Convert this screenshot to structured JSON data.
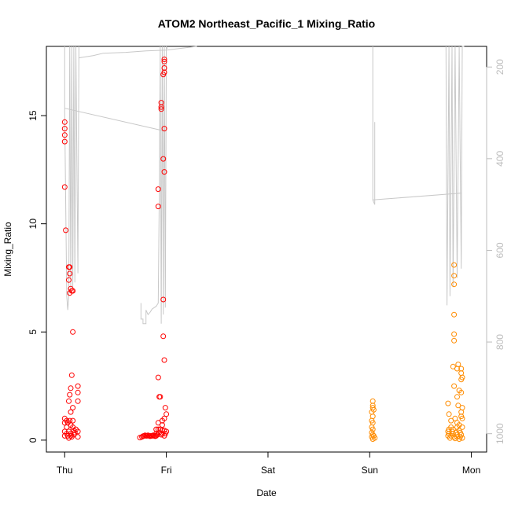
{
  "chart_data": {
    "type": "scatter",
    "title": "ATOM2 Northeast_Pacific_1 Mixing_Ratio",
    "xlabel": "Date",
    "ylabel": "Mixing_Ratio",
    "x_ticks": [
      {
        "label": "Thu",
        "value": 0
      },
      {
        "label": "Fri",
        "value": 1
      },
      {
        "label": "Sat",
        "value": 2
      },
      {
        "label": "Sun",
        "value": 3
      },
      {
        "label": "Mon",
        "value": 4
      }
    ],
    "xlim": [
      -0.18,
      4.15
    ],
    "ylim": [
      -0.55,
      18.2
    ],
    "y_ticks": [
      0,
      5,
      10,
      15
    ],
    "y2_ticks": [
      200,
      400,
      600,
      800,
      1000
    ],
    "y2lim": [
      1040,
      155
    ],
    "y2_reversed": true,
    "colors": {
      "red": "#ff0000",
      "orange": "#ff8c00",
      "gray": "#c8c8c8"
    },
    "series": [
      {
        "color": "red",
        "points": [
          [
            0.0,
            14.7
          ],
          [
            0.0,
            14.4
          ],
          [
            0.0,
            14.1
          ],
          [
            0.0,
            13.8
          ],
          [
            0.0,
            11.7
          ],
          [
            0.01,
            9.7
          ],
          [
            0.04,
            8.0
          ],
          [
            0.05,
            8.0
          ],
          [
            0.05,
            7.7
          ],
          [
            0.04,
            7.4
          ],
          [
            0.06,
            7.0
          ],
          [
            0.07,
            6.9
          ],
          [
            0.05,
            6.8
          ],
          [
            0.08,
            6.9
          ],
          [
            0.08,
            5.0
          ],
          [
            0.07,
            3.0
          ],
          [
            0.13,
            2.5
          ],
          [
            0.06,
            2.4
          ],
          [
            0.13,
            2.2
          ],
          [
            0.05,
            2.1
          ],
          [
            0.04,
            1.8
          ],
          [
            0.13,
            1.8
          ],
          [
            0.08,
            1.5
          ],
          [
            0.06,
            1.3
          ],
          [
            0.0,
            1.0
          ],
          [
            0.02,
            0.9
          ],
          [
            0.05,
            0.9
          ],
          [
            0.08,
            0.9
          ],
          [
            0.0,
            0.8
          ],
          [
            0.03,
            0.8
          ],
          [
            0.06,
            0.7
          ],
          [
            0.02,
            0.6
          ],
          [
            0.08,
            0.6
          ],
          [
            0.11,
            0.5
          ],
          [
            0.0,
            0.4
          ],
          [
            0.04,
            0.4
          ],
          [
            0.09,
            0.45
          ],
          [
            0.13,
            0.4
          ],
          [
            0.02,
            0.3
          ],
          [
            0.06,
            0.3
          ],
          [
            0.1,
            0.35
          ],
          [
            0.0,
            0.2
          ],
          [
            0.03,
            0.2
          ],
          [
            0.06,
            0.2
          ],
          [
            0.09,
            0.25
          ],
          [
            0.13,
            0.15
          ],
          [
            0.04,
            0.1
          ],
          [
            0.07,
            0.15
          ],
          [
            0.95,
            15.6
          ],
          [
            0.95,
            15.4
          ],
          [
            0.95,
            15.3
          ],
          [
            0.98,
            17.6
          ],
          [
            0.98,
            17.5
          ],
          [
            0.98,
            17.2
          ],
          [
            0.98,
            17.0
          ],
          [
            0.97,
            16.9
          ],
          [
            0.98,
            14.4
          ],
          [
            0.97,
            13.0
          ],
          [
            0.98,
            12.4
          ],
          [
            0.92,
            11.6
          ],
          [
            0.92,
            10.8
          ],
          [
            0.97,
            6.5
          ],
          [
            0.97,
            4.8
          ],
          [
            0.98,
            3.7
          ],
          [
            0.92,
            2.9
          ],
          [
            0.93,
            2.0
          ],
          [
            0.94,
            2.0
          ],
          [
            0.99,
            1.5
          ],
          [
            1.0,
            1.2
          ],
          [
            0.98,
            1.0
          ],
          [
            0.96,
            0.9
          ],
          [
            0.92,
            0.8
          ],
          [
            0.96,
            0.7
          ],
          [
            0.9,
            0.5
          ],
          [
            0.92,
            0.5
          ],
          [
            0.94,
            0.5
          ],
          [
            0.96,
            0.45
          ],
          [
            0.98,
            0.45
          ],
          [
            1.0,
            0.4
          ],
          [
            0.9,
            0.3
          ],
          [
            0.93,
            0.35
          ],
          [
            0.96,
            0.3
          ],
          [
            0.99,
            0.3
          ],
          [
            0.91,
            0.25
          ],
          [
            0.95,
            0.25
          ],
          [
            0.98,
            0.2
          ],
          [
            0.74,
            0.12
          ],
          [
            0.76,
            0.15
          ],
          [
            0.77,
            0.18
          ],
          [
            0.78,
            0.2
          ],
          [
            0.79,
            0.22
          ],
          [
            0.8,
            0.2
          ],
          [
            0.81,
            0.2
          ],
          [
            0.82,
            0.22
          ],
          [
            0.83,
            0.2
          ],
          [
            0.84,
            0.18
          ],
          [
            0.85,
            0.2
          ],
          [
            0.86,
            0.2
          ],
          [
            0.87,
            0.22
          ],
          [
            0.88,
            0.2
          ],
          [
            0.89,
            0.18
          ],
          [
            0.9,
            0.2
          ]
        ]
      },
      {
        "color": "orange",
        "points": [
          [
            3.03,
            1.8
          ],
          [
            3.03,
            1.6
          ],
          [
            3.03,
            1.5
          ],
          [
            3.04,
            1.4
          ],
          [
            3.02,
            1.3
          ],
          [
            3.03,
            1.1
          ],
          [
            3.02,
            0.9
          ],
          [
            3.03,
            0.8
          ],
          [
            3.02,
            0.6
          ],
          [
            3.03,
            0.5
          ],
          [
            3.02,
            0.35
          ],
          [
            3.03,
            0.25
          ],
          [
            3.04,
            0.2
          ],
          [
            3.02,
            0.15
          ],
          [
            3.05,
            0.1
          ],
          [
            3.03,
            0.05
          ],
          [
            3.83,
            8.1
          ],
          [
            3.83,
            7.6
          ],
          [
            3.83,
            7.2
          ],
          [
            3.83,
            5.8
          ],
          [
            3.83,
            4.9
          ],
          [
            3.83,
            4.6
          ],
          [
            3.87,
            3.5
          ],
          [
            3.82,
            3.4
          ],
          [
            3.86,
            3.3
          ],
          [
            3.9,
            3.3
          ],
          [
            3.9,
            3.1
          ],
          [
            3.91,
            2.9
          ],
          [
            3.9,
            2.8
          ],
          [
            3.83,
            2.5
          ],
          [
            3.88,
            2.3
          ],
          [
            3.9,
            2.2
          ],
          [
            3.86,
            2.0
          ],
          [
            3.77,
            1.7
          ],
          [
            3.87,
            1.6
          ],
          [
            3.91,
            1.5
          ],
          [
            3.9,
            1.3
          ],
          [
            3.78,
            1.2
          ],
          [
            3.9,
            1.1
          ],
          [
            3.84,
            1.0
          ],
          [
            3.91,
            1.0
          ],
          [
            3.8,
            0.9
          ],
          [
            3.86,
            0.8
          ],
          [
            3.88,
            0.7
          ],
          [
            3.8,
            0.6
          ],
          [
            3.86,
            0.6
          ],
          [
            3.91,
            0.6
          ],
          [
            3.78,
            0.5
          ],
          [
            3.82,
            0.5
          ],
          [
            3.88,
            0.45
          ],
          [
            3.77,
            0.4
          ],
          [
            3.81,
            0.4
          ],
          [
            3.85,
            0.35
          ],
          [
            3.89,
            0.35
          ],
          [
            3.78,
            0.3
          ],
          [
            3.82,
            0.3
          ],
          [
            3.86,
            0.25
          ],
          [
            3.9,
            0.25
          ],
          [
            3.77,
            0.2
          ],
          [
            3.8,
            0.2
          ],
          [
            3.83,
            0.15
          ],
          [
            3.86,
            0.15
          ],
          [
            3.89,
            0.15
          ],
          [
            3.91,
            0.1
          ],
          [
            3.79,
            0.1
          ],
          [
            3.84,
            0.08
          ],
          [
            3.88,
            0.05
          ]
        ]
      }
    ],
    "gray_lines": [
      {
        "x": [
          0.0,
          0.0,
          0.02,
          0.03,
          0.04,
          0.05,
          0.06,
          0.07,
          0.08,
          0.09,
          0.1,
          0.11,
          0.13,
          0.14
        ],
        "y2": [
          155,
          300,
          700,
          730,
          700,
          155,
          690,
          155,
          680,
          155,
          670,
          155,
          650,
          155
        ]
      },
      {
        "x": [
          0.0,
          0.99
        ],
        "y2": [
          290,
          340
        ]
      },
      {
        "x": [
          0.14,
          0.28,
          0.38,
          0.6,
          0.8,
          1.0,
          1.3
        ],
        "y2": [
          180,
          175,
          170,
          168,
          165,
          163,
          155
        ]
      },
      {
        "x": [
          0.75,
          0.75,
          0.77,
          0.77,
          0.8,
          0.8,
          0.82,
          0.84,
          0.86,
          0.88,
          0.9,
          0.92,
          0.93,
          0.94,
          0.95,
          0.96,
          0.97,
          0.98,
          0.99,
          1.0,
          1.01
        ],
        "y2": [
          715,
          750,
          750,
          760,
          760,
          730,
          740,
          735,
          728,
          725,
          722,
          715,
          480,
          155,
          760,
          155,
          740,
          155,
          725,
          155,
          160
        ]
      },
      {
        "x": [
          3.03,
          3.03,
          3.05,
          3.05,
          3.05
        ],
        "y2": [
          155,
          490,
          500,
          490,
          320
        ]
      },
      {
        "x": [
          3.03,
          3.9
        ],
        "y2": [
          490,
          475
        ]
      },
      {
        "x": [
          3.75,
          3.76,
          3.78,
          3.79,
          3.81,
          3.82,
          3.84,
          3.86,
          3.88,
          3.9,
          3.91,
          3.93
        ],
        "y2": [
          155,
          720,
          155,
          700,
          155,
          680,
          155,
          660,
          155,
          640,
          155,
          155
        ]
      }
    ]
  }
}
